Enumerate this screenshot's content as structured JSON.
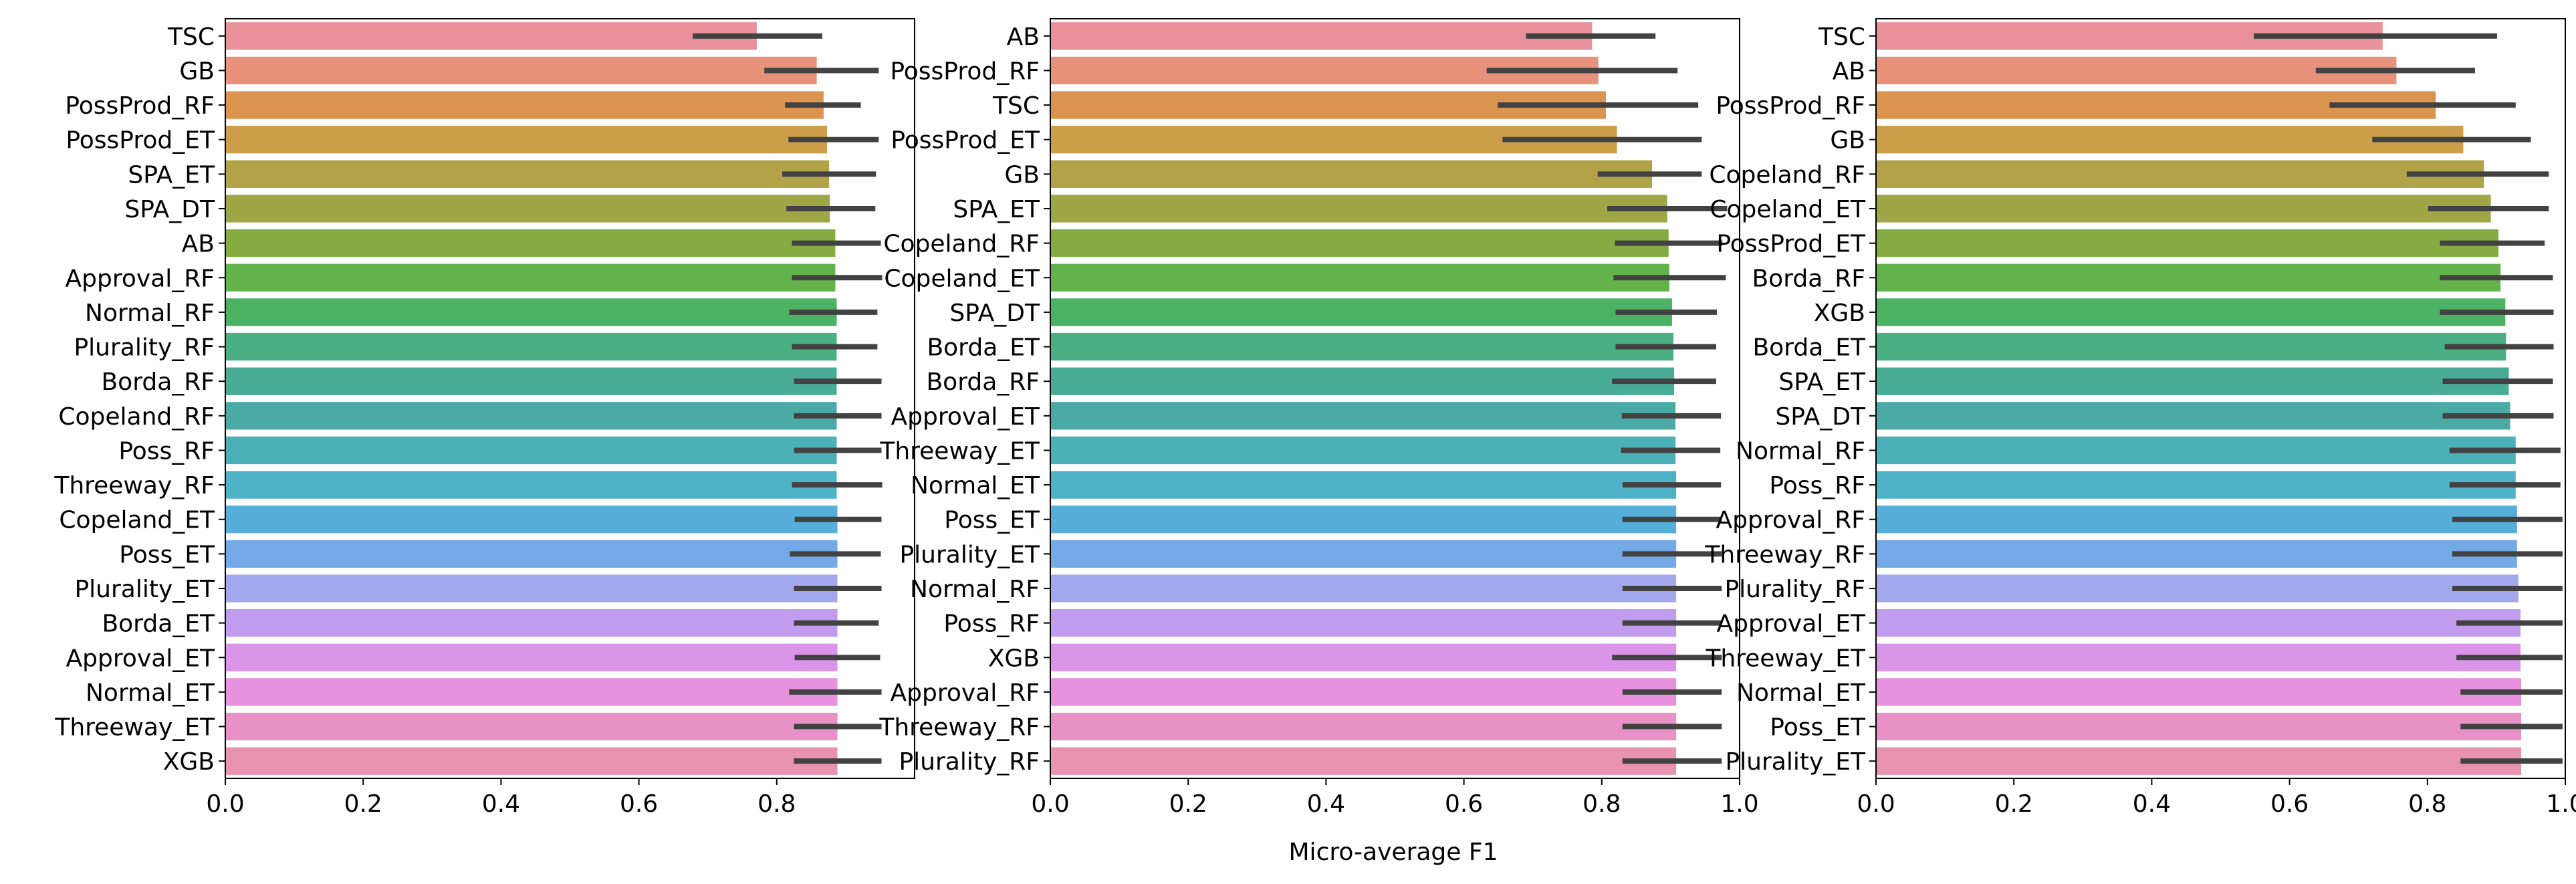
{
  "figure": {
    "xlabel": "Micro-average F1"
  },
  "chart_data": [
    {
      "type": "bar",
      "orientation": "horizontal",
      "xlim": [
        0,
        1.0
      ],
      "xticks": [
        "0.0",
        "0.2",
        "0.4",
        "0.6",
        "0.8"
      ],
      "categories": [
        "TSC",
        "GB",
        "PossProd_RF",
        "PossProd_ET",
        "SPA_ET",
        "SPA_DT",
        "AB",
        "Approval_RF",
        "Normal_RF",
        "Plurality_RF",
        "Borda_RF",
        "Copeland_RF",
        "Poss_RF",
        "Threeway_RF",
        "Copeland_ET",
        "Poss_ET",
        "Plurality_ET",
        "Borda_ET",
        "Approval_ET",
        "Normal_ET",
        "Threeway_ET",
        "XGB"
      ],
      "values": [
        0.771,
        0.858,
        0.868,
        0.873,
        0.876,
        0.877,
        0.885,
        0.885,
        0.887,
        0.887,
        0.887,
        0.887,
        0.887,
        0.887,
        0.888,
        0.888,
        0.888,
        0.888,
        0.888,
        0.888,
        0.888,
        0.888
      ],
      "errors": [
        [
          0.678,
          0.866
        ],
        [
          0.782,
          0.948
        ],
        [
          0.812,
          0.922
        ],
        [
          0.817,
          0.948
        ],
        [
          0.808,
          0.944
        ],
        [
          0.814,
          0.943
        ],
        [
          0.822,
          0.951
        ],
        [
          0.822,
          0.953
        ],
        [
          0.818,
          0.946
        ],
        [
          0.822,
          0.946
        ],
        [
          0.825,
          0.952
        ],
        [
          0.825,
          0.952
        ],
        [
          0.825,
          0.952
        ],
        [
          0.822,
          0.953
        ],
        [
          0.826,
          0.952
        ],
        [
          0.819,
          0.951
        ],
        [
          0.825,
          0.952
        ],
        [
          0.825,
          0.948
        ],
        [
          0.826,
          0.95
        ],
        [
          0.818,
          0.952
        ],
        [
          0.825,
          0.952
        ],
        [
          0.825,
          0.952
        ]
      ]
    },
    {
      "type": "bar",
      "orientation": "horizontal",
      "xlim": [
        0,
        1.0
      ],
      "xticks": [
        "0.0",
        "0.2",
        "0.4",
        "0.6",
        "0.8",
        "1.0"
      ],
      "categories": [
        "AB",
        "PossProd_RF",
        "TSC",
        "PossProd_ET",
        "GB",
        "SPA_ET",
        "Copeland_RF",
        "Copeland_ET",
        "SPA_DT",
        "Borda_ET",
        "Borda_RF",
        "Approval_ET",
        "Threeway_ET",
        "Normal_ET",
        "Poss_ET",
        "Plurality_ET",
        "Normal_RF",
        "Poss_RF",
        "XGB",
        "Approval_RF",
        "Threeway_RF",
        "Plurality_RF"
      ],
      "values": [
        0.786,
        0.795,
        0.806,
        0.822,
        0.873,
        0.895,
        0.897,
        0.898,
        0.902,
        0.904,
        0.905,
        0.907,
        0.907,
        0.908,
        0.908,
        0.908,
        0.908,
        0.908,
        0.908,
        0.908,
        0.908,
        0.908
      ],
      "errors": [
        [
          0.69,
          0.878
        ],
        [
          0.633,
          0.91
        ],
        [
          0.649,
          0.94
        ],
        [
          0.656,
          0.945
        ],
        [
          0.794,
          0.945
        ],
        [
          0.808,
          0.982
        ],
        [
          0.819,
          0.975
        ],
        [
          0.817,
          0.98
        ],
        [
          0.82,
          0.967
        ],
        [
          0.82,
          0.966
        ],
        [
          0.815,
          0.966
        ],
        [
          0.829,
          0.973
        ],
        [
          0.828,
          0.972
        ],
        [
          0.83,
          0.973
        ],
        [
          0.83,
          0.974
        ],
        [
          0.83,
          0.974
        ],
        [
          0.83,
          0.974
        ],
        [
          0.83,
          0.974
        ],
        [
          0.815,
          0.974
        ],
        [
          0.83,
          0.974
        ],
        [
          0.83,
          0.974
        ],
        [
          0.83,
          0.974
        ]
      ]
    },
    {
      "type": "bar",
      "orientation": "horizontal",
      "xlim": [
        0,
        1.0
      ],
      "xticks": [
        "0.0",
        "0.2",
        "0.4",
        "0.6",
        "0.8",
        "1.0"
      ],
      "categories": [
        "TSC",
        "AB",
        "PossProd_RF",
        "GB",
        "Copeland_RF",
        "Copeland_ET",
        "PossProd_ET",
        "Borda_RF",
        "XGB",
        "Borda_ET",
        "SPA_ET",
        "SPA_DT",
        "Normal_RF",
        "Poss_RF",
        "Approval_RF",
        "Threeway_RF",
        "Plurality_RF",
        "Approval_ET",
        "Threeway_ET",
        "Normal_ET",
        "Poss_ET",
        "Plurality_ET"
      ],
      "values": [
        0.735,
        0.755,
        0.812,
        0.852,
        0.882,
        0.892,
        0.903,
        0.906,
        0.913,
        0.914,
        0.918,
        0.92,
        0.928,
        0.928,
        0.93,
        0.93,
        0.932,
        0.935,
        0.935,
        0.936,
        0.936,
        0.936
      ],
      "errors": [
        [
          0.548,
          0.901
        ],
        [
          0.638,
          0.869
        ],
        [
          0.658,
          0.928
        ],
        [
          0.72,
          0.95
        ],
        [
          0.77,
          0.976
        ],
        [
          0.801,
          0.976
        ],
        [
          0.818,
          0.97
        ],
        [
          0.818,
          0.982
        ],
        [
          0.818,
          0.983
        ],
        [
          0.825,
          0.983
        ],
        [
          0.822,
          0.982
        ],
        [
          0.822,
          0.983
        ],
        [
          0.832,
          0.993
        ],
        [
          0.832,
          0.993
        ],
        [
          0.836,
          0.996
        ],
        [
          0.836,
          0.996
        ],
        [
          0.836,
          0.996
        ],
        [
          0.842,
          0.996
        ],
        [
          0.842,
          0.996
        ],
        [
          0.848,
          0.996
        ],
        [
          0.848,
          0.996
        ],
        [
          0.848,
          0.996
        ]
      ]
    }
  ],
  "palette": [
    "#e8919b",
    "#e8917b",
    "#dc9550",
    "#cc9e4a",
    "#b2a348",
    "#9fa645",
    "#84ac43",
    "#63b24b",
    "#4cb263",
    "#4aaf82",
    "#49ac96",
    "#4baaa6",
    "#4bb0b8",
    "#4fb3c8",
    "#56aed9",
    "#74a9e7",
    "#a3a7ee",
    "#c19cee",
    "#da95e9",
    "#e891de",
    "#e891c7",
    "#e893b0"
  ],
  "error_color": "#424242"
}
